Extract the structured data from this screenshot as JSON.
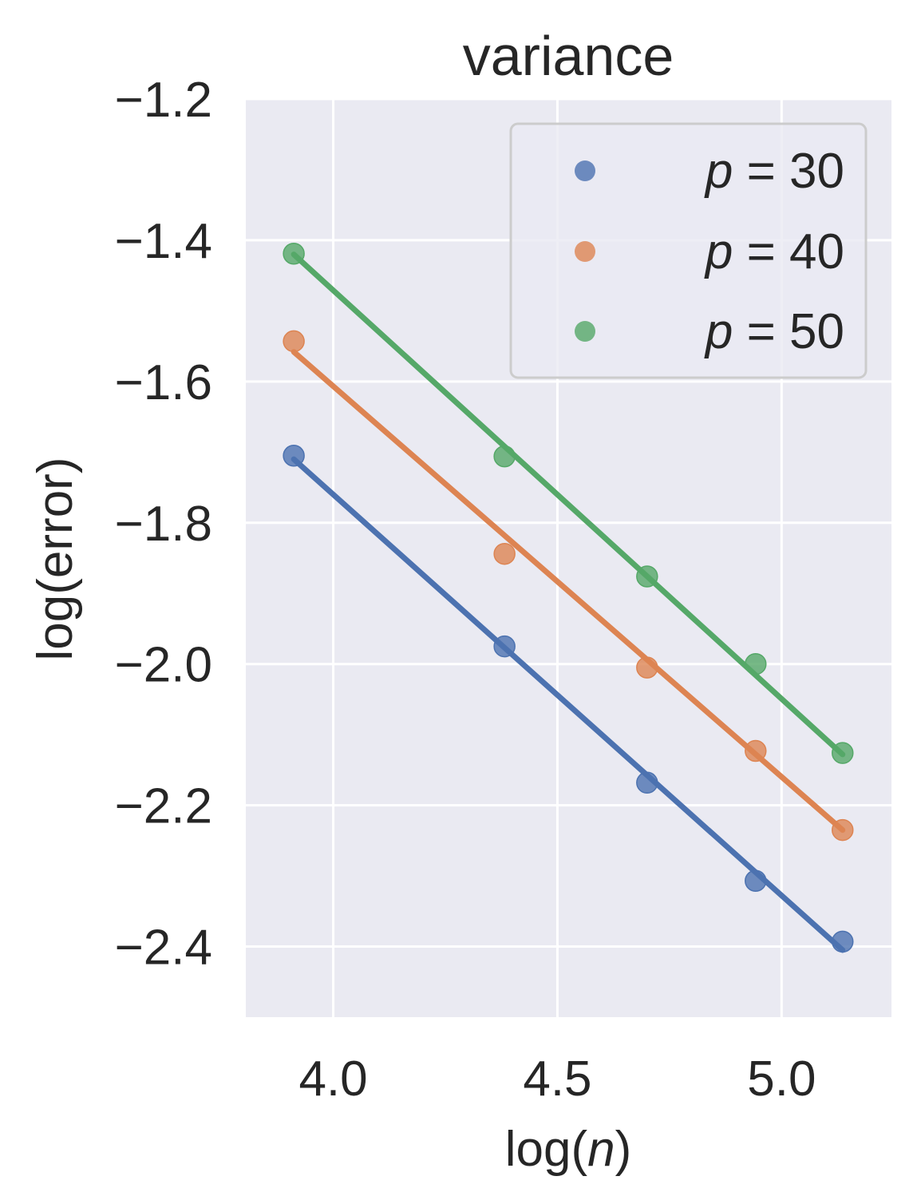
{
  "chart_data": {
    "type": "scatter",
    "title": "variance",
    "xlabel": {
      "prefix": "log(",
      "var": "n",
      "suffix": ")"
    },
    "ylabel": "log(error)",
    "xlim": [
      3.805,
      5.245
    ],
    "ylim": [
      -2.5,
      -1.2
    ],
    "xticks": [
      4.0,
      4.5,
      5.0
    ],
    "xtick_labels": [
      "4.0",
      "4.5",
      "5.0"
    ],
    "yticks": [
      -1.2,
      -1.4,
      -1.6,
      -1.8,
      -2.0,
      -2.2,
      -2.4
    ],
    "ytick_labels": [
      "−1.2",
      "−1.4",
      "−1.6",
      "−1.8",
      "−2.0",
      "−2.2",
      "−2.4"
    ],
    "grid": true,
    "legend_position": "top-right",
    "x": [
      3.912,
      4.382,
      4.7,
      4.942,
      5.136
    ],
    "series": [
      {
        "name": "p = 30",
        "legend": {
          "var": "p",
          "eq": " = ",
          "num": "30"
        },
        "color": "#4c72b0",
        "values": [
          -1.705,
          -1.975,
          -2.168,
          -2.307,
          -2.393
        ],
        "fit": {
          "x": [
            3.912,
            5.136
          ],
          "y": [
            -1.71,
            -2.405
          ]
        }
      },
      {
        "name": "p = 40",
        "legend": {
          "var": "p",
          "eq": " = ",
          "num": "40"
        },
        "color": "#dd8452",
        "values": [
          -1.543,
          -1.844,
          -2.005,
          -2.123,
          -2.235
        ],
        "fit": {
          "x": [
            3.912,
            5.136
          ],
          "y": [
            -1.558,
            -2.235
          ]
        }
      },
      {
        "name": "p = 50",
        "legend": {
          "var": "p",
          "eq": " = ",
          "num": "50"
        },
        "color": "#55a868",
        "values": [
          -1.419,
          -1.706,
          -1.876,
          -2.0,
          -2.126
        ],
        "fit": {
          "x": [
            3.912,
            5.136
          ],
          "y": [
            -1.42,
            -2.128
          ]
        }
      }
    ]
  },
  "style": {
    "plot_background": "#eaeaf2",
    "grid_color": "#ffffff",
    "text_color": "#262626",
    "legend_border": "#cccccc"
  }
}
